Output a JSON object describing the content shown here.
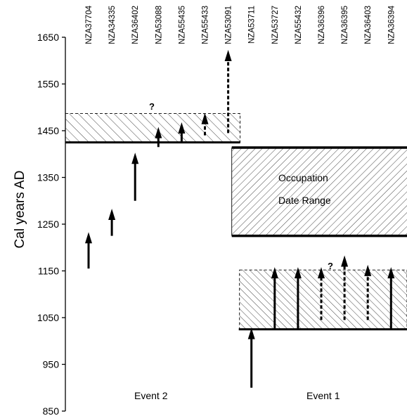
{
  "chart_data": {
    "type": "scatter",
    "title": "",
    "xlabel": "",
    "ylabel": "Cal years AD",
    "ylim": [
      850,
      1650
    ],
    "yticks": [
      850,
      950,
      1050,
      1150,
      1250,
      1350,
      1450,
      1550,
      1650
    ],
    "samples": [
      "NZA37704",
      "NZA34335",
      "NZA36402",
      "NZA53088",
      "NZA55435",
      "NZA55433",
      "NZA53091",
      "NZA53711",
      "NZA53727",
      "NZA55432",
      "NZA36396",
      "NZA36395",
      "NZA36403",
      "NZA36394"
    ],
    "arrows": [
      {
        "sample": "NZA37704",
        "from": 1155,
        "to": 1230,
        "style": "solid"
      },
      {
        "sample": "NZA34335",
        "from": 1225,
        "to": 1280,
        "style": "solid"
      },
      {
        "sample": "NZA36402",
        "from": 1300,
        "to": 1400,
        "style": "solid"
      },
      {
        "sample": "NZA53088",
        "from": 1415,
        "to": 1455,
        "style": "solid"
      },
      {
        "sample": "NZA55435",
        "from": 1425,
        "to": 1465,
        "style": "solid"
      },
      {
        "sample": "NZA55433",
        "from": 1440,
        "to": 1485,
        "style": "dashed"
      },
      {
        "sample": "NZA53091",
        "from": 1445,
        "to": 1620,
        "style": "dashed"
      },
      {
        "sample": "NZA53711",
        "from": 900,
        "to": 1025,
        "style": "solid"
      },
      {
        "sample": "NZA53727",
        "from": 1025,
        "to": 1155,
        "style": "solid"
      },
      {
        "sample": "NZA55432",
        "from": 1025,
        "to": 1155,
        "style": "solid"
      },
      {
        "sample": "NZA36396",
        "from": 1045,
        "to": 1155,
        "style": "dashed"
      },
      {
        "sample": "NZA36395",
        "from": 1045,
        "to": 1180,
        "style": "dashed"
      },
      {
        "sample": "NZA36403",
        "from": 1045,
        "to": 1160,
        "style": "dashed"
      },
      {
        "sample": "NZA36394",
        "from": 1025,
        "to": 1155,
        "style": "solid"
      }
    ],
    "ranges": [
      {
        "label": "Event 2 hatched range",
        "from_sample": "NZA37704",
        "to_sample": "NZA53091",
        "bottom": 1425,
        "top": 1487
      },
      {
        "label": "Occupation Date Range",
        "from_sample": "NZA53711",
        "to_sample": "NZA36394",
        "bottom": 1225,
        "top": 1414
      },
      {
        "label": "Event 1 hatched range",
        "from_sample": "NZA53711",
        "to_sample": "NZA36394",
        "bottom": 1025,
        "top": 1152
      }
    ],
    "annotations": {
      "occupation_line1": "Occupation",
      "occupation_line2": "Date Range",
      "event2": "Event 2",
      "event1": "Event 1",
      "question_upper": "?",
      "question_lower": "?"
    }
  }
}
